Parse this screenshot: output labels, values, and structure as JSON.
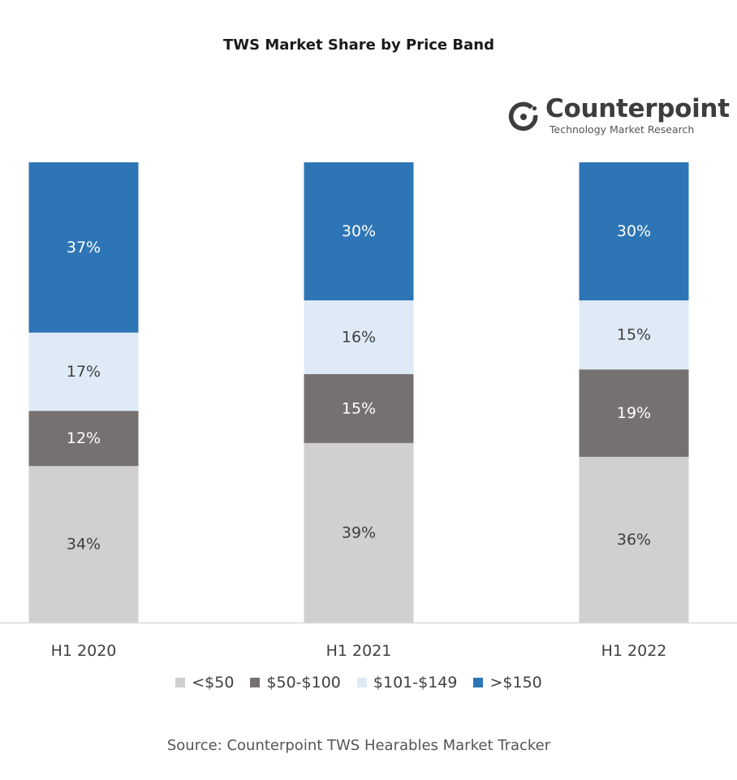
{
  "chart_data": {
    "type": "bar",
    "stacked": true,
    "title": "TWS Market Share by Price Band",
    "categories": [
      "H1 2020",
      "H1 2021",
      "H1 2022"
    ],
    "series": [
      {
        "name": "<$50",
        "color": "#d1cfcf",
        "values": [
          34,
          39,
          36
        ],
        "labels": [
          "34%",
          "39%",
          "36%"
        ]
      },
      {
        "name": "$50-$100",
        "color": "#767171",
        "values": [
          12,
          15,
          19
        ],
        "labels": [
          "12%",
          "15%",
          "19%"
        ]
      },
      {
        "name": "$101-$149",
        "color": "#deebf7",
        "values": [
          17,
          16,
          15
        ],
        "labels": [
          "17%",
          "16%",
          "15%"
        ]
      },
      {
        "name": ">$150",
        "color": "#2e75b6",
        "values": [
          37,
          30,
          30
        ],
        "labels": [
          "37%",
          "30%",
          "30%"
        ]
      }
    ],
    "ylim": [
      0,
      100
    ],
    "grid": false,
    "legend": "bottom",
    "xlabel": "",
    "ylabel": ""
  },
  "logo": {
    "name": "Counterpoint",
    "tagline": "Technology Market Research"
  },
  "source": "Source: Counterpoint TWS Hearables Market Tracker"
}
